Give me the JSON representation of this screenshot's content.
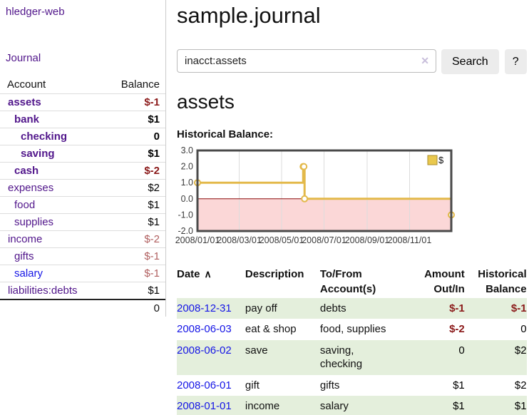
{
  "app": {
    "title": "hledger-web"
  },
  "sidebar": {
    "journal_link": "Journal",
    "accounts_table": {
      "account_header": "Account",
      "balance_header": "Balance",
      "rows": [
        {
          "name": "assets",
          "indent": 1,
          "name_class": "purple bold",
          "balance": "$-1",
          "balance_class": "neg-strong"
        },
        {
          "name": "bank",
          "indent": 2,
          "name_class": "purple bold",
          "balance": "$1",
          "balance_class": "pos-strong"
        },
        {
          "name": "checking",
          "indent": 3,
          "name_class": "purple bold",
          "balance": "0",
          "balance_class": "pos-strong"
        },
        {
          "name": "saving",
          "indent": 3,
          "name_class": "purple bold",
          "balance": "$1",
          "balance_class": "pos-strong"
        },
        {
          "name": "cash",
          "indent": 2,
          "name_class": "purple bold",
          "balance": "$-2",
          "balance_class": "neg-strong"
        },
        {
          "name": "expenses",
          "indent": 1,
          "name_class": "purple",
          "balance": "$2",
          "balance_class": "pos"
        },
        {
          "name": "food",
          "indent": 2,
          "name_class": "purple",
          "balance": "$1",
          "balance_class": "pos"
        },
        {
          "name": "supplies",
          "indent": 2,
          "name_class": "purple",
          "balance": "$1",
          "balance_class": "pos"
        },
        {
          "name": "income",
          "indent": 1,
          "name_class": "purple",
          "balance": "$-2",
          "balance_class": "neg"
        },
        {
          "name": "gifts",
          "indent": 2,
          "name_class": "purple",
          "balance": "$-1",
          "balance_class": "neg"
        },
        {
          "name": "salary",
          "indent": 2,
          "name_class": "blue",
          "balance": "$-1",
          "balance_class": "neg"
        },
        {
          "name": "liabilities:debts",
          "indent": 1,
          "name_class": "purple",
          "balance": "$1",
          "balance_class": "pos"
        }
      ],
      "total": "0"
    }
  },
  "main": {
    "title": "sample.journal",
    "search": {
      "value": "inacct:assets",
      "clear_icon": "✕",
      "search_button": "Search",
      "help_button": "?"
    },
    "account_heading": "assets",
    "chart_title": "Historical Balance:"
  },
  "chart_data": {
    "type": "line",
    "subtype": "step",
    "title": "Historical Balance:",
    "series": [
      {
        "name": "$",
        "points": [
          {
            "x": "2008-01-01",
            "y": 1
          },
          {
            "x": "2008-06-01",
            "y": 2
          },
          {
            "x": "2008-06-02",
            "y": 2
          },
          {
            "x": "2008-06-03",
            "y": 0
          },
          {
            "x": "2008-12-31",
            "y": -1
          }
        ]
      }
    ],
    "xlim": [
      "2008-01-01",
      "2008-12-31"
    ],
    "ylim": [
      -2,
      3
    ],
    "y_ticks": [
      "3.0",
      "2.0",
      "1.0",
      "0.0",
      "-1.0",
      "-2.0"
    ],
    "x_ticks": [
      {
        "date": "2008-01-01",
        "label": "2008/01/01"
      },
      {
        "date": "2008-03-01",
        "label": "2008/03/01"
      },
      {
        "date": "2008-05-01",
        "label": "2008/05/01"
      },
      {
        "date": "2008-07-01",
        "label": "2008/07/01"
      },
      {
        "date": "2008-09-01",
        "label": "2008/09/01"
      },
      {
        "date": "2008-11-01",
        "label": "2008/11/01"
      }
    ],
    "legend_position": "top-right",
    "grid": true,
    "colors": {
      "line": "#e3b94a",
      "marker_fill": "#ffffff",
      "negative_fill": "#fbd7d7",
      "zero_line": "#8b0d0d",
      "grid": "#dcdcdc",
      "border": "#4a4a4a",
      "legend_fill": "#e9c84d",
      "legend_border": "#a98d2e"
    }
  },
  "register_table": {
    "sort_icon": "∧",
    "headers": [
      {
        "label": "Date"
      },
      {
        "label": "Description"
      },
      {
        "label": "To/From Account(s)"
      },
      {
        "label": "Amount Out/In"
      },
      {
        "label": "Historical Balance"
      }
    ],
    "rows": [
      {
        "date": "2008-12-31",
        "description": "pay off",
        "accounts": "debts",
        "amount": "$-1",
        "amount_class": "neg-strong",
        "balance": "$-1",
        "balance_class": "neg-strong"
      },
      {
        "date": "2008-06-03",
        "description": "eat & shop",
        "accounts": "food, supplies",
        "amount": "$-2",
        "amount_class": "neg-strong",
        "balance": "0",
        "balance_class": "pos"
      },
      {
        "date": "2008-06-02",
        "description": "save",
        "accounts": "saving, checking",
        "amount": "0",
        "amount_class": "pos",
        "balance": "$2",
        "balance_class": "pos"
      },
      {
        "date": "2008-06-01",
        "description": "gift",
        "accounts": "gifts",
        "amount": "$1",
        "amount_class": "pos",
        "balance": "$2",
        "balance_class": "pos"
      },
      {
        "date": "2008-01-01",
        "description": "income",
        "accounts": "salary",
        "amount": "$1",
        "amount_class": "pos",
        "balance": "$1",
        "balance_class": "pos"
      }
    ]
  },
  "colors": {
    "link_purple": "#51168b",
    "link_blue": "#1515e6",
    "negative_strong": "#8b1a1a",
    "negative_muted": "#b05f5f",
    "row_stripe_green": "#e4efdc",
    "divider": "#cccccc",
    "button_bg": "#ececec"
  }
}
